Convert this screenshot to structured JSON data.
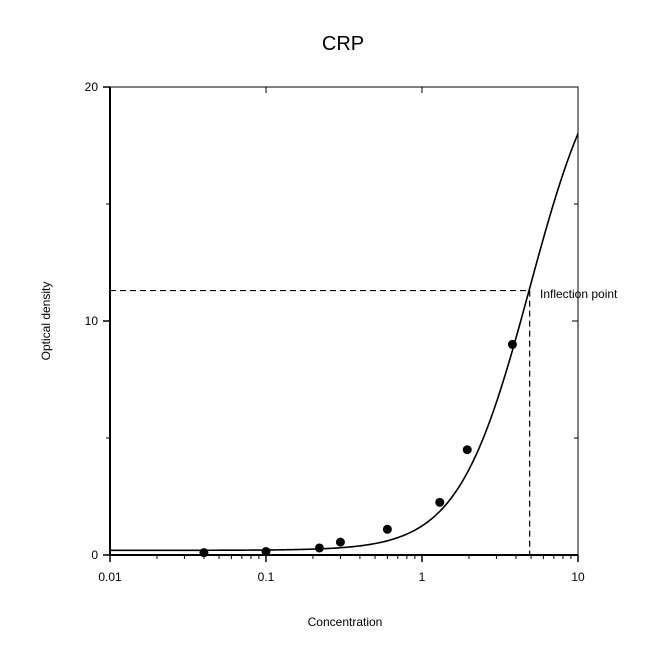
{
  "chart_data": {
    "type": "scatter",
    "title": "CRP",
    "xlabel": "Concentration",
    "ylabel": "Optical density",
    "x_scale": "log",
    "xlim": [
      0.01,
      10
    ],
    "ylim": [
      0,
      20
    ],
    "x_ticks": [
      0.01,
      0.1,
      1,
      10
    ],
    "x_tick_labels": [
      "0.01",
      "0.1",
      "1",
      "10"
    ],
    "y_ticks": [
      0,
      10,
      20
    ],
    "y_tick_labels": [
      "0",
      "10",
      "20"
    ],
    "grid": false,
    "legend": "none",
    "series": [
      {
        "kind": "points",
        "x": [
          0.04,
          0.1,
          0.22,
          0.3,
          0.6,
          1.3,
          1.95,
          3.8
        ],
        "y": [
          0.1,
          0.15,
          0.3,
          0.55,
          1.1,
          2.25,
          4.5,
          9.0
        ]
      },
      {
        "kind": "fitted-curve",
        "model": "4PL",
        "params": {
          "min": 0.2,
          "max": 22.6,
          "ec50": 4.9,
          "slope": 1.9
        }
      }
    ],
    "annotations": [
      {
        "text": "Inflection point",
        "x": 4.9,
        "y": 11.3,
        "style": "dashed crosshair"
      }
    ]
  }
}
